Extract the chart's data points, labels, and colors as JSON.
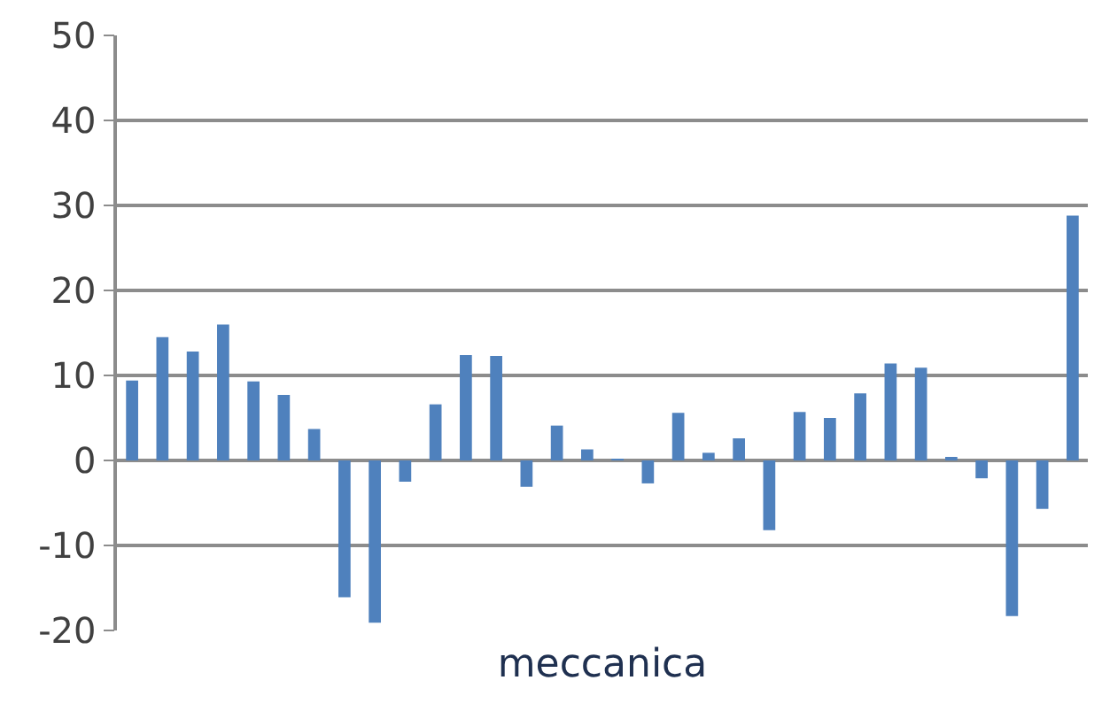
{
  "chart_data": {
    "type": "bar",
    "xlabel": "meccanica",
    "categories": [
      null,
      null,
      null,
      null,
      null,
      null,
      null,
      null,
      null,
      null,
      null,
      null,
      null,
      null,
      null,
      null,
      null,
      null,
      null,
      null,
      null,
      null,
      null,
      null,
      null,
      null,
      null,
      null,
      null,
      null,
      null,
      null
    ],
    "values": [
      9.4,
      14.5,
      12.8,
      16,
      9.3,
      7.7,
      3.7,
      -16.1,
      -19.1,
      -2.5,
      6.6,
      12.4,
      12.3,
      -3.1,
      4.1,
      1.3,
      0.1,
      -2.7,
      5.6,
      0.9,
      2.6,
      -8.2,
      5.7,
      5,
      7.9,
      11.4,
      10.9,
      0.3,
      -2.1,
      -18.3,
      -5.7,
      28.8
    ],
    "color": "#4f81bd",
    "ylim": [
      -20,
      50
    ],
    "yticks": [
      -20,
      -10,
      0,
      10,
      20,
      30,
      40,
      50
    ],
    "grid": "y"
  }
}
